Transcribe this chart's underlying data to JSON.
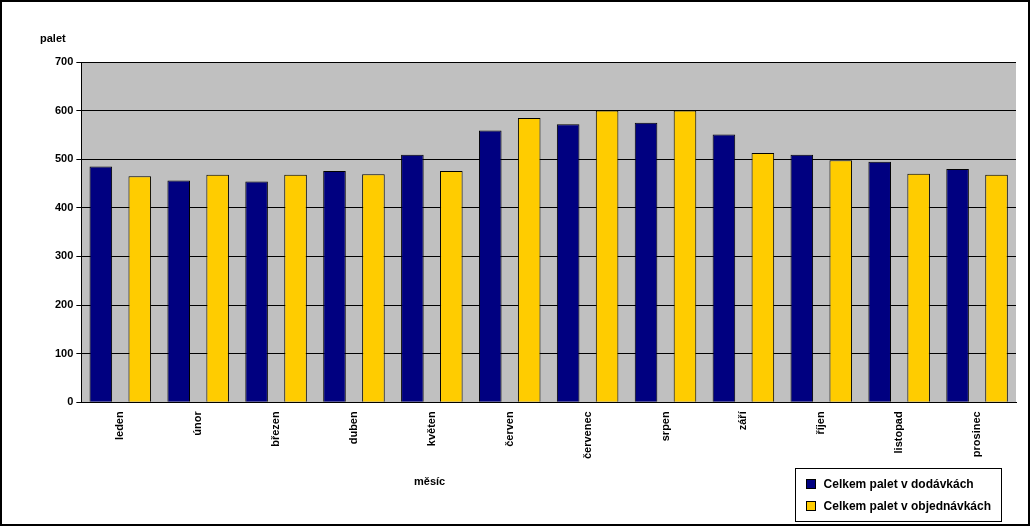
{
  "chart_data": {
    "type": "bar",
    "xlabel": "měsíc",
    "ylabel": "palet",
    "categories": [
      "leden",
      "únor",
      "březen",
      "duben",
      "květen",
      "červen",
      "červenec",
      "srpen",
      "září",
      "říjen",
      "listopad",
      "prosinec"
    ],
    "series": [
      {
        "name": "Celkem palet v dodávkách",
        "color": "#000080",
        "values": [
          485,
          456,
          454,
          476,
          509,
          559,
          572,
          575,
          551,
          509,
          495,
          480
        ]
      },
      {
        "name": "Celkem palet v objednávkách",
        "color": "#ffcc00",
        "values": [
          465,
          468,
          468,
          469,
          476,
          585,
          600,
          600,
          513,
          498,
          470,
          468
        ]
      }
    ],
    "ylim": [
      0,
      700
    ],
    "yticks": [
      0,
      100,
      200,
      300,
      400,
      500,
      600,
      700
    ],
    "grid": "y",
    "legend": "bottom right"
  }
}
